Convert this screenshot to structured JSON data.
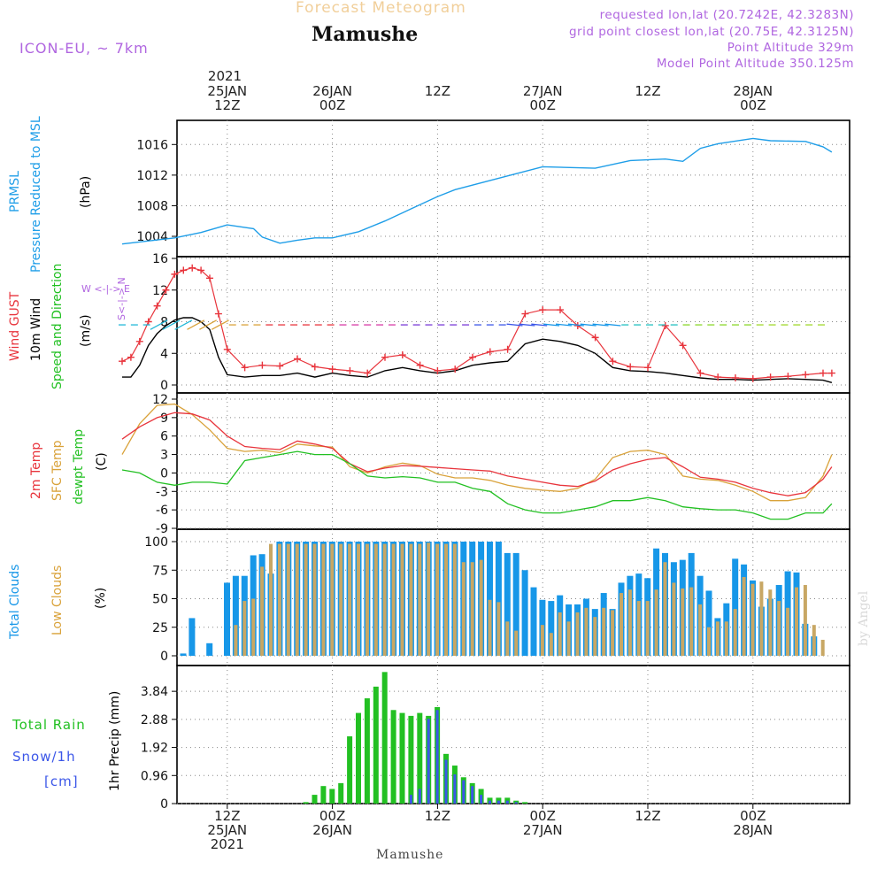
{
  "header": {
    "faded_title": "Forecast Meteogram",
    "location": "Mamushe",
    "model": "ICON-EU, ~ 7km",
    "requested": "requested lon,lat (20.7242E, 42.3283N)",
    "grid_point": "grid point closest lon,lat (20.75E, 42.3125N)",
    "point_altitude": "Point Altitude 329m",
    "model_altitude": "Model Point Altitude 350.125m"
  },
  "time_axis": {
    "year": "2021",
    "top_ticks": [
      {
        "line1": "25JAN",
        "line2": "12Z",
        "h": 12
      },
      {
        "line1": "26JAN",
        "line2": "00Z",
        "h": 24
      },
      {
        "line1": "",
        "line2": "12Z",
        "h": 36
      },
      {
        "line1": "27JAN",
        "line2": "00Z",
        "h": 48
      },
      {
        "line1": "",
        "line2": "12Z",
        "h": 60
      },
      {
        "line1": "28JAN",
        "line2": "00Z",
        "h": 72
      }
    ],
    "bottom_ticks": [
      {
        "line1": "12Z",
        "line2": "25JAN",
        "line3": "2021",
        "h": 12
      },
      {
        "line1": "00Z",
        "line2": "26JAN",
        "line3": "",
        "h": 24
      },
      {
        "line1": "12Z",
        "line2": "",
        "line3": "",
        "h": 36
      },
      {
        "line1": "00Z",
        "line2": "27JAN",
        "line3": "",
        "h": 48
      },
      {
        "line1": "12Z",
        "line2": "",
        "line3": "",
        "h": 60
      },
      {
        "line1": "00Z",
        "line2": "28JAN",
        "line3": "",
        "h": 72
      }
    ]
  },
  "footer": "Mamushe",
  "watermark": "by Angel",
  "panels": {
    "pressure": {
      "label1": "PRMSL",
      "label2": "Pressure Reduced to MSL",
      "unit": "(hPa)",
      "color": "#1f9ee8"
    },
    "wind": {
      "label_gust": "Wind GUST",
      "label_wind": "10m Wind",
      "label_dir": "Speed and Direction",
      "unit": "(m/s)",
      "compass_ns": "S<-|-> N",
      "compass_we": "W <-|-> E"
    },
    "temp": {
      "label_2m": "2m Temp",
      "label_sfc": "SFC Temp",
      "label_dew": "dewpt Temp",
      "unit": "(C)"
    },
    "clouds": {
      "label_total": "Total Clouds",
      "label_low": "Low Clouds",
      "unit": "(%)"
    },
    "precip": {
      "label_rain": "Total Rain",
      "label_snow": "Snow/1h",
      "label_cm": "[cm]",
      "unit": "1hr Precip (mm)"
    }
  },
  "colors": {
    "pressure": "#1f9ee8",
    "gust": "#e8343c",
    "wind": "#000000",
    "t2m": "#e8343c",
    "tsfc": "#d9a23a",
    "tdew": "#22c022",
    "cloud_total": "#1797e8",
    "cloud_low": "#c8a764",
    "rain": "#22c022",
    "snow": "#3b56e8",
    "purple": "#b066e0"
  },
  "chart_data": [
    {
      "type": "line",
      "title": "PRMSL",
      "ylabel": "hPa",
      "x_hours_from": "2021-01-25 00Z",
      "ylim": [
        1002.5,
        1018
      ],
      "yticks": [
        1004,
        1008,
        1012,
        1016
      ],
      "x": [
        0,
        6,
        9,
        12,
        15,
        16,
        18,
        20,
        22,
        24,
        27,
        30,
        33,
        36,
        38,
        42,
        48,
        54,
        58,
        62,
        64,
        66,
        68,
        72,
        74,
        78,
        80,
        81
      ],
      "series": [
        {
          "name": "PRMSL",
          "values": [
            1003.0,
            1003.8,
            1004.5,
            1005.5,
            1005.0,
            1003.9,
            1003.1,
            1003.5,
            1003.8,
            1003.8,
            1004.6,
            1006.0,
            1007.6,
            1009.2,
            1010.1,
            1011.3,
            1013.1,
            1012.9,
            1013.9,
            1014.1,
            1013.8,
            1015.5,
            1016.1,
            1016.8,
            1016.5,
            1016.4,
            1015.7,
            1015.0
          ]
        }
      ]
    },
    {
      "type": "line",
      "title": "Wind",
      "ylabel": "m/s",
      "ylim": [
        0,
        16
      ],
      "yticks": [
        0,
        4,
        8,
        12,
        16
      ],
      "x": [
        0,
        1,
        2,
        3,
        4,
        5,
        6,
        7,
        8,
        9,
        10,
        11,
        12,
        14,
        16,
        18,
        20,
        22,
        24,
        26,
        28,
        30,
        32,
        34,
        36,
        38,
        40,
        42,
        44,
        46,
        48,
        50,
        52,
        54,
        56,
        58,
        60,
        62,
        64,
        66,
        68,
        70,
        72,
        74,
        76,
        78,
        80,
        81
      ],
      "series": [
        {
          "name": "Wind GUST",
          "values": [
            3,
            3.5,
            5.5,
            8,
            10,
            12,
            14,
            14.5,
            14.8,
            14.5,
            13.5,
            9,
            4.5,
            2.2,
            2.5,
            2.4,
            3.3,
            2.3,
            2.0,
            1.8,
            1.5,
            3.5,
            3.8,
            2.5,
            1.8,
            2.0,
            3.5,
            4.2,
            4.5,
            9.0,
            9.5,
            9.5,
            7.5,
            6.0,
            3.0,
            2.3,
            2.2,
            7.5,
            5.0,
            1.5,
            1.0,
            0.9,
            0.8,
            1.0,
            1.1,
            1.3,
            1.5,
            1.5
          ]
        },
        {
          "name": "10m Wind",
          "values": [
            1.0,
            1.0,
            2.5,
            5.0,
            6.5,
            7.5,
            8.2,
            8.5,
            8.5,
            8.0,
            7.0,
            3.5,
            1.3,
            1.0,
            1.2,
            1.2,
            1.5,
            1.0,
            1.5,
            1.2,
            1.0,
            1.8,
            2.2,
            1.8,
            1.5,
            1.8,
            2.5,
            2.8,
            3.0,
            5.2,
            5.8,
            5.5,
            5.0,
            4.0,
            2.2,
            1.8,
            1.7,
            1.5,
            1.2,
            0.9,
            0.7,
            0.7,
            0.6,
            0.7,
            0.8,
            0.7,
            0.6,
            0.3
          ]
        }
      ]
    },
    {
      "type": "line",
      "title": "Temperature",
      "ylabel": "C",
      "ylim": [
        -9,
        12
      ],
      "yticks": [
        -9,
        -6,
        -3,
        0,
        3,
        6,
        9,
        12
      ],
      "x": [
        0,
        2,
        4,
        6,
        8,
        10,
        12,
        14,
        16,
        18,
        20,
        22,
        24,
        26,
        28,
        30,
        32,
        34,
        36,
        38,
        40,
        42,
        44,
        46,
        48,
        50,
        52,
        54,
        56,
        58,
        60,
        62,
        64,
        66,
        68,
        70,
        72,
        74,
        76,
        78,
        80,
        81
      ],
      "series": [
        {
          "name": "2m Temp",
          "values": [
            5.5,
            7.5,
            9.0,
            9.8,
            9.6,
            8.6,
            6.0,
            4.3,
            4.0,
            3.8,
            5.2,
            4.7,
            4.0,
            1.5,
            0.2,
            0.8,
            1.2,
            1.1,
            0.9,
            0.7,
            0.5,
            0.3,
            -0.5,
            -1.0,
            -1.5,
            -2.0,
            -2.2,
            -1.3,
            0.5,
            1.5,
            2.2,
            2.5,
            1.0,
            -0.7,
            -1.0,
            -1.5,
            -2.5,
            -3.2,
            -3.7,
            -3.2,
            -1.0,
            1.0
          ]
        },
        {
          "name": "SFC Temp",
          "values": [
            3.0,
            8.0,
            11.0,
            11.2,
            9.5,
            7.0,
            4.0,
            3.5,
            3.7,
            3.3,
            4.7,
            4.4,
            4.2,
            1.0,
            0.0,
            1.0,
            1.6,
            1.2,
            -0.2,
            -0.8,
            -0.8,
            -1.2,
            -2.0,
            -2.5,
            -2.8,
            -3.0,
            -2.5,
            -1.0,
            2.5,
            3.5,
            3.7,
            3.0,
            -0.5,
            -1.0,
            -1.2,
            -2.0,
            -3.0,
            -4.5,
            -4.5,
            -4.0,
            -0.5,
            3.0
          ]
        },
        {
          "name": "dewpt Temp",
          "values": [
            0.5,
            0.0,
            -1.5,
            -2.0,
            -1.5,
            -1.5,
            -1.8,
            2.0,
            2.5,
            3.0,
            3.5,
            3.0,
            3.0,
            1.5,
            -0.5,
            -0.8,
            -0.6,
            -0.8,
            -1.5,
            -1.5,
            -2.5,
            -3.0,
            -5.0,
            -6.0,
            -6.5,
            -6.5,
            -6.0,
            -5.5,
            -4.5,
            -4.5,
            -4.0,
            -4.5,
            -5.5,
            -5.8,
            -6.0,
            -6.0,
            -6.5,
            -7.5,
            -7.5,
            -6.5,
            -6.5,
            -5.0
          ]
        }
      ]
    },
    {
      "type": "bar",
      "title": "Clouds",
      "ylabel": "%",
      "ylim": [
        0,
        100
      ],
      "yticks": [
        0,
        25,
        50,
        75,
        100
      ],
      "x_start_hour": 0,
      "x_step_hours": 1,
      "series": [
        {
          "name": "Total Clouds",
          "values": [
            2,
            33,
            0,
            11,
            0,
            64,
            70,
            70,
            88,
            89,
            72,
            100,
            100,
            100,
            100,
            100,
            100,
            100,
            100,
            100,
            100,
            100,
            100,
            100,
            100,
            100,
            100,
            100,
            100,
            100,
            100,
            100,
            100,
            100,
            100,
            100,
            100,
            90,
            90,
            75,
            60,
            49,
            48,
            53,
            45,
            45,
            50,
            41,
            55,
            41,
            64,
            70,
            72,
            68,
            94,
            90,
            82,
            84,
            90,
            70,
            57,
            33,
            46,
            85,
            80,
            66,
            43,
            50,
            62,
            74,
            73,
            28,
            17,
            0,
            0,
            0,
            15,
            94,
            95,
            79,
            81,
            95,
            90
          ]
        },
        {
          "name": "Low Clouds",
          "values": [
            0,
            0,
            0,
            0,
            0,
            0,
            27,
            48,
            50,
            78,
            98,
            98,
            98,
            98,
            98,
            98,
            98,
            98,
            98,
            98,
            98,
            98,
            98,
            98,
            98,
            98,
            98,
            98,
            99,
            98,
            98,
            98,
            82,
            82,
            84,
            49,
            47,
            30,
            22,
            0,
            0,
            27,
            20,
            38,
            30,
            38,
            42,
            34,
            42,
            40,
            55,
            58,
            48,
            48,
            58,
            82,
            64,
            59,
            60,
            45,
            25,
            30,
            30,
            41,
            69,
            63,
            65,
            58,
            48,
            42,
            60,
            62,
            27,
            14,
            0,
            0,
            0,
            0,
            0,
            0,
            0,
            10,
            0
          ]
        }
      ]
    },
    {
      "type": "bar",
      "title": "Precipitation",
      "ylabel": "1hr Precip (mm)",
      "ylim": [
        0,
        4.48
      ],
      "yticks": [
        0,
        0.96,
        1.92,
        2.88,
        3.84
      ],
      "x_start_hour": 14,
      "x_step_hours": 1,
      "series": [
        {
          "name": "Total Rain",
          "values": [
            0.05,
            0.3,
            0.6,
            0.5,
            0.7,
            2.3,
            3.1,
            3.6,
            4.0,
            4.5,
            3.2,
            3.1,
            3.0,
            3.1,
            3.0,
            3.3,
            1.7,
            1.3,
            0.9,
            0.7,
            0.5,
            0.2,
            0.2,
            0.2,
            0.1,
            0.05
          ]
        },
        {
          "name": "Snow/1h",
          "values": [
            0,
            0,
            0,
            0,
            0,
            0,
            0,
            0,
            0,
            0,
            0,
            0,
            0.3,
            0.5,
            2.9,
            3.2,
            1.5,
            1.0,
            0.8,
            0.6,
            0.3,
            0.1,
            0.1,
            0.1,
            0.05,
            0
          ]
        }
      ]
    }
  ]
}
